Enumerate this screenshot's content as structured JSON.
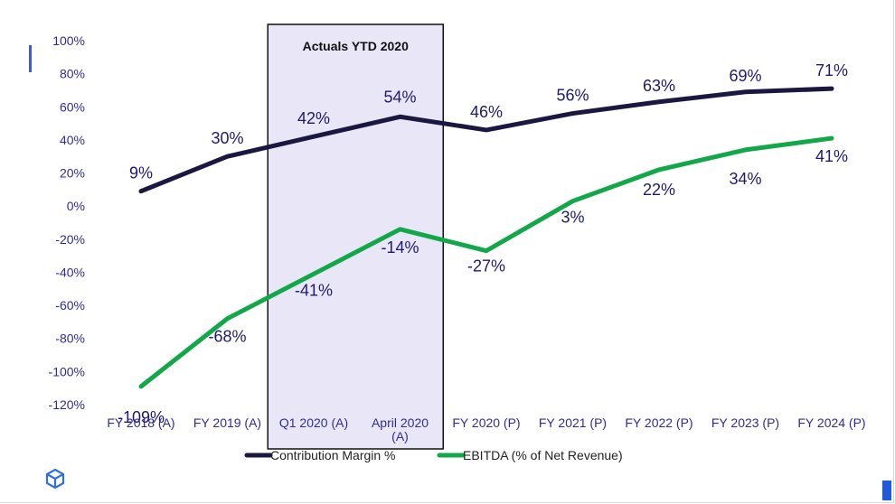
{
  "chart_data": {
    "type": "line",
    "categories": [
      "FY 2018 (A)",
      "FY 2019 (A)",
      "Q1 2020 (A)",
      "April 2020\n(A)",
      "FY 2020 (P)",
      "FY 2021 (P)",
      "FY 2022 (P)",
      "FY 2023 (P)",
      "FY 2024 (P)"
    ],
    "series": [
      {
        "name": "Contribution Margin %",
        "color": "#1a1840",
        "values": [
          9,
          30,
          42,
          54,
          46,
          56,
          63,
          69,
          71
        ],
        "labels": [
          "9%",
          "30%",
          "42%",
          "54%",
          "46%",
          "56%",
          "63%",
          "69%",
          "71%"
        ]
      },
      {
        "name": "EBITDA (% of Net Revenue)",
        "color": "#12a84a",
        "values": [
          -109,
          -68,
          -41,
          -14,
          -27,
          3,
          22,
          34,
          41
        ],
        "labels": [
          "-109%",
          "-68%",
          "-41%",
          "-14%",
          "-27%",
          "3%",
          "22%",
          "34%",
          "41%"
        ]
      }
    ],
    "yticks": [
      "100%",
      "80%",
      "60%",
      "40%",
      "20%",
      "0%",
      "-20%",
      "-40%",
      "-60%",
      "-80%",
      "-100%",
      "-120%"
    ],
    "ylim": [
      -120,
      100
    ],
    "highlight": {
      "title": "Actuals YTD 2020",
      "categories": [
        "Q1 2020 (A)",
        "April 2020\n(A)"
      ],
      "fill": "#e9e7f7"
    },
    "legend_position": "bottom-center",
    "grid": false
  },
  "icons": {
    "bottom_left": "cube-logo-icon"
  }
}
